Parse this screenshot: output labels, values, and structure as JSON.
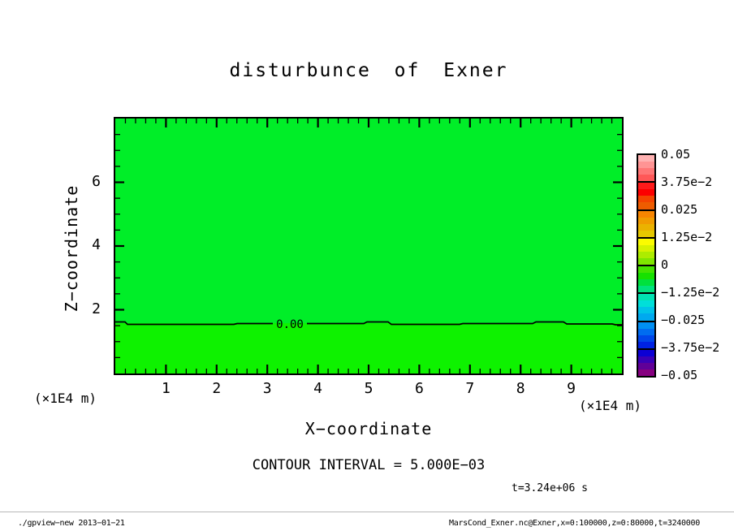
{
  "title": "disturbunce of Exner",
  "plot": {
    "fill_upper": "#00ee28",
    "fill_lower": "#0ef200",
    "contour_label": "0.00",
    "x_axis": {
      "label": "X−coordinate",
      "unit": "(×1E4 m)",
      "ticks": [
        "1",
        "2",
        "3",
        "4",
        "5",
        "6",
        "7",
        "8",
        "9"
      ],
      "range": [
        0,
        10
      ],
      "minor_step": 0.2
    },
    "z_axis": {
      "label": "Z−coordinate",
      "unit": "(×1E4 m)",
      "ticks": [
        "2",
        "4",
        "6"
      ],
      "range": [
        0,
        8
      ],
      "minor_step": 0.5
    }
  },
  "colorbar": {
    "labels": [
      "0.05",
      "3.75e−2",
      "0.025",
      "1.25e−2",
      "0",
      "−1.25e−2",
      "−0.025",
      "−3.75e−2",
      "−0.05"
    ],
    "boxes": [
      [
        "#ffb2b2",
        "#ff9494",
        "#ff7676",
        "#ff5858"
      ],
      [
        "#ff1a1a",
        "#fc0000",
        "#f44400",
        "#ee5c00"
      ],
      [
        "#f78500",
        "#f19c00",
        "#ebb200",
        "#e5c800"
      ],
      [
        "#fbfb00",
        "#d7f200",
        "#adec00",
        "#7fe600"
      ],
      [
        "#44e300",
        "#17e100",
        "#00e13e",
        "#00e37e"
      ],
      [
        "#00e3b2",
        "#00dfd9",
        "#00c3e9",
        "#00a9ef"
      ],
      [
        "#008ff3",
        "#006cf0",
        "#0046ea",
        "#0022e4"
      ],
      [
        "#0c00d4",
        "#3a00b6",
        "#600098",
        "#860080"
      ]
    ]
  },
  "caption": "CONTOUR INTERVAL = 5.000E−03",
  "time_label": "t=3.24e+06 s",
  "footer": {
    "left": "./gpview−new  2013−01−21",
    "right": "MarsCond_Exner.nc@Exner,x=0:100000,z=0:80000,t=3240000"
  },
  "chart_data": {
    "type": "heatmap",
    "title": "disturbunce of Exner",
    "xlabel": "X−coordinate (×1E4 m)",
    "ylabel": "Z−coordinate (×1E4 m)",
    "xlim": [
      0,
      10
    ],
    "ylim": [
      0,
      8
    ],
    "x_major_ticks": [
      1,
      2,
      3,
      4,
      5,
      6,
      7,
      8,
      9
    ],
    "y_major_ticks": [
      2,
      4,
      6
    ],
    "value_name": "Exner function disturbance",
    "value_range_shown": [
      -0.05,
      0.05
    ],
    "colorbar_tick_values": [
      0.05,
      0.0375,
      0.025,
      0.0125,
      0,
      -0.0125,
      -0.025,
      -0.0375,
      -0.05
    ],
    "contour_interval": 0.005,
    "zero_contour": {
      "level": 0.0,
      "z_of_line": 1.55,
      "shape": "nearly horizontal wavy line across full x range, labeled 0.00"
    },
    "field_summary": "Field nearly uniform; all values within the −1.25e−2..1.25e−2 green bands; single 0.00 contour near z≈1.55×1E4 m separating two green shades.",
    "time": "t=3.24e+06 s",
    "legend_position": "right colorbar, 8 labeled boxes of 4 shade strips each"
  }
}
